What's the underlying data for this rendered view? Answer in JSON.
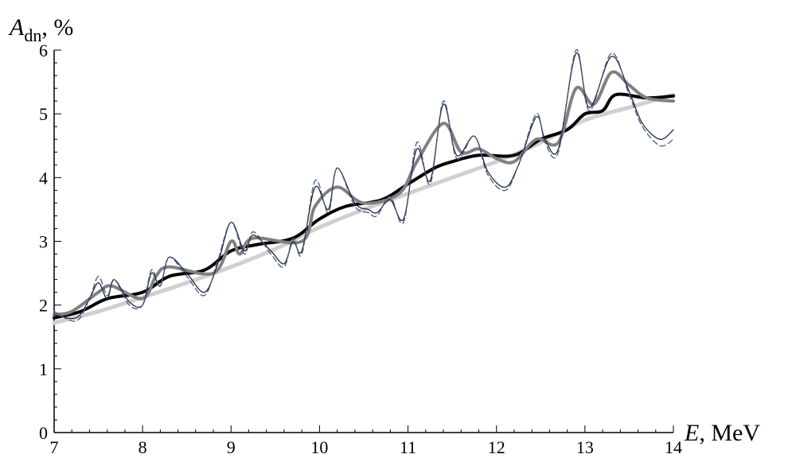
{
  "chart_data": {
    "type": "line",
    "title": "",
    "ylabel": {
      "symbol": "A",
      "subscript": "dn",
      "unit": ", %"
    },
    "xlabel": {
      "symbol": "E",
      "unit": ", MeV"
    },
    "xlim": [
      7,
      14
    ],
    "ylim": [
      0,
      6
    ],
    "x_ticks": [
      "7",
      "8",
      "9",
      "10",
      "11",
      "12",
      "13",
      "14"
    ],
    "y_ticks": [
      "0",
      "1",
      "2",
      "3",
      "4",
      "5",
      "6"
    ],
    "grid": false,
    "legend": "none",
    "series": [
      {
        "style": "light-gray-thick",
        "color": "#d0d0d0",
        "points": [
          [
            7.0,
            1.72
          ],
          [
            7.5,
            1.9
          ],
          [
            8.0,
            2.12
          ],
          [
            8.5,
            2.35
          ],
          [
            9.0,
            2.6
          ],
          [
            9.5,
            2.88
          ],
          [
            10.0,
            3.22
          ],
          [
            10.5,
            3.5
          ],
          [
            11.0,
            3.75
          ],
          [
            11.5,
            4.0
          ],
          [
            12.0,
            4.25
          ],
          [
            12.5,
            4.55
          ],
          [
            13.0,
            4.9
          ],
          [
            13.5,
            5.1
          ],
          [
            14.0,
            5.3
          ]
        ]
      },
      {
        "style": "black-thick",
        "color": "#000000",
        "points": [
          [
            7.0,
            1.8
          ],
          [
            7.3,
            1.9
          ],
          [
            7.6,
            2.1
          ],
          [
            8.0,
            2.2
          ],
          [
            8.3,
            2.45
          ],
          [
            8.7,
            2.55
          ],
          [
            9.0,
            2.85
          ],
          [
            9.3,
            2.95
          ],
          [
            9.7,
            3.05
          ],
          [
            10.0,
            3.35
          ],
          [
            10.3,
            3.55
          ],
          [
            10.7,
            3.65
          ],
          [
            11.0,
            3.9
          ],
          [
            11.3,
            4.15
          ],
          [
            11.5,
            4.25
          ],
          [
            11.8,
            4.35
          ],
          [
            12.2,
            4.35
          ],
          [
            12.5,
            4.6
          ],
          [
            12.8,
            4.75
          ],
          [
            13.0,
            5.0
          ],
          [
            13.2,
            5.05
          ],
          [
            13.35,
            5.3
          ],
          [
            13.7,
            5.25
          ],
          [
            14.0,
            5.28
          ]
        ]
      },
      {
        "style": "gray-thick",
        "color": "#808080",
        "points": [
          [
            7.0,
            1.85
          ],
          [
            7.2,
            1.9
          ],
          [
            7.5,
            2.2
          ],
          [
            7.65,
            2.3
          ],
          [
            8.0,
            2.1
          ],
          [
            8.15,
            2.45
          ],
          [
            8.3,
            2.6
          ],
          [
            8.8,
            2.5
          ],
          [
            9.0,
            3.0
          ],
          [
            9.1,
            2.8
          ],
          [
            9.25,
            3.05
          ],
          [
            9.8,
            3.0
          ],
          [
            9.95,
            3.55
          ],
          [
            10.2,
            3.85
          ],
          [
            10.5,
            3.6
          ],
          [
            10.9,
            3.75
          ],
          [
            11.1,
            4.25
          ],
          [
            11.4,
            4.85
          ],
          [
            11.6,
            4.4
          ],
          [
            11.8,
            4.45
          ],
          [
            12.0,
            4.3
          ],
          [
            12.2,
            4.25
          ],
          [
            12.45,
            4.6
          ],
          [
            12.7,
            4.55
          ],
          [
            12.9,
            5.4
          ],
          [
            13.1,
            5.15
          ],
          [
            13.3,
            5.65
          ],
          [
            13.5,
            5.45
          ],
          [
            13.7,
            5.25
          ],
          [
            14.0,
            5.2
          ]
        ]
      },
      {
        "style": "dark-thin",
        "color": "#1c2a44",
        "points": [
          [
            7.0,
            1.85
          ],
          [
            7.25,
            1.8
          ],
          [
            7.4,
            2.1
          ],
          [
            7.5,
            2.35
          ],
          [
            7.6,
            2.1
          ],
          [
            7.68,
            2.4
          ],
          [
            7.85,
            2.05
          ],
          [
            8.0,
            2.0
          ],
          [
            8.1,
            2.5
          ],
          [
            8.2,
            2.3
          ],
          [
            8.3,
            2.75
          ],
          [
            8.5,
            2.5
          ],
          [
            8.7,
            2.2
          ],
          [
            8.85,
            2.65
          ],
          [
            9.0,
            3.3
          ],
          [
            9.15,
            2.85
          ],
          [
            9.25,
            3.1
          ],
          [
            9.45,
            2.85
          ],
          [
            9.6,
            2.65
          ],
          [
            9.7,
            3.0
          ],
          [
            9.8,
            2.85
          ],
          [
            9.95,
            3.85
          ],
          [
            10.1,
            3.5
          ],
          [
            10.2,
            4.15
          ],
          [
            10.4,
            3.6
          ],
          [
            10.55,
            3.5
          ],
          [
            10.65,
            3.45
          ],
          [
            10.8,
            3.65
          ],
          [
            10.95,
            3.35
          ],
          [
            11.1,
            4.45
          ],
          [
            11.25,
            3.95
          ],
          [
            11.4,
            5.15
          ],
          [
            11.55,
            4.35
          ],
          [
            11.75,
            4.65
          ],
          [
            11.9,
            4.1
          ],
          [
            12.1,
            3.85
          ],
          [
            12.25,
            4.2
          ],
          [
            12.45,
            4.95
          ],
          [
            12.55,
            4.6
          ],
          [
            12.7,
            4.45
          ],
          [
            12.9,
            5.95
          ],
          [
            13.05,
            5.1
          ],
          [
            13.3,
            5.9
          ],
          [
            13.5,
            5.35
          ],
          [
            13.65,
            4.85
          ],
          [
            13.85,
            4.6
          ],
          [
            14.0,
            4.75
          ]
        ]
      },
      {
        "style": "dashed-thin",
        "color": "#4a5878",
        "points": [
          [
            7.0,
            1.9
          ],
          [
            7.25,
            1.75
          ],
          [
            7.4,
            2.1
          ],
          [
            7.5,
            2.45
          ],
          [
            7.6,
            2.15
          ],
          [
            7.68,
            2.4
          ],
          [
            7.85,
            2.0
          ],
          [
            8.0,
            2.0
          ],
          [
            8.1,
            2.55
          ],
          [
            8.2,
            2.3
          ],
          [
            8.3,
            2.75
          ],
          [
            8.5,
            2.45
          ],
          [
            8.7,
            2.15
          ],
          [
            8.85,
            2.7
          ],
          [
            9.0,
            3.3
          ],
          [
            9.15,
            2.8
          ],
          [
            9.25,
            3.15
          ],
          [
            9.45,
            2.8
          ],
          [
            9.6,
            2.6
          ],
          [
            9.7,
            3.05
          ],
          [
            9.8,
            2.8
          ],
          [
            9.95,
            3.95
          ],
          [
            10.1,
            3.45
          ],
          [
            10.2,
            4.15
          ],
          [
            10.4,
            3.55
          ],
          [
            10.55,
            3.45
          ],
          [
            10.65,
            3.4
          ],
          [
            10.8,
            3.7
          ],
          [
            10.95,
            3.3
          ],
          [
            11.1,
            4.55
          ],
          [
            11.25,
            3.9
          ],
          [
            11.4,
            5.2
          ],
          [
            11.55,
            4.3
          ],
          [
            11.75,
            4.65
          ],
          [
            11.9,
            4.05
          ],
          [
            12.1,
            3.8
          ],
          [
            12.25,
            4.2
          ],
          [
            12.45,
            5.0
          ],
          [
            12.55,
            4.55
          ],
          [
            12.7,
            4.4
          ],
          [
            12.9,
            6.0
          ],
          [
            13.05,
            5.05
          ],
          [
            13.3,
            5.95
          ],
          [
            13.5,
            5.3
          ],
          [
            13.65,
            4.8
          ],
          [
            13.85,
            4.5
          ],
          [
            14.0,
            4.6
          ]
        ]
      }
    ]
  }
}
